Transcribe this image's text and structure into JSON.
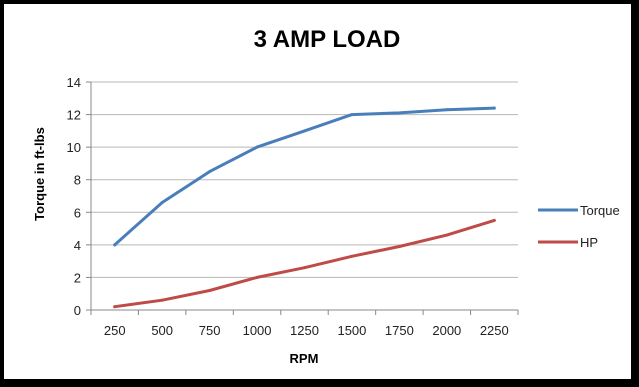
{
  "chart_data": {
    "type": "line",
    "title": "3 AMP LOAD",
    "xlabel": "RPM",
    "ylabel": "Torque in ft-lbs",
    "categories": [
      "250",
      "500",
      "750",
      "1000",
      "1250",
      "1500",
      "1750",
      "2000",
      "2250"
    ],
    "ylim": [
      0,
      14
    ],
    "yticks": [
      0,
      2,
      4,
      6,
      8,
      10,
      12,
      14
    ],
    "grid": true,
    "legend_position": "right",
    "series": [
      {
        "name": "Torque",
        "color": "#4a7ebb",
        "x": [
          250,
          500,
          750,
          1000,
          1250,
          1500,
          1750,
          2000,
          2250
        ],
        "values": [
          4.0,
          6.6,
          8.5,
          10.0,
          11.0,
          12.0,
          12.1,
          12.3,
          12.4
        ]
      },
      {
        "name": "HP",
        "color": "#be4b48",
        "x": [
          250,
          500,
          750,
          1000,
          1250,
          1500,
          1750,
          2000,
          2250
        ],
        "values": [
          0.2,
          0.6,
          1.2,
          2.0,
          2.6,
          3.3,
          3.9,
          4.6,
          5.5
        ]
      }
    ]
  }
}
